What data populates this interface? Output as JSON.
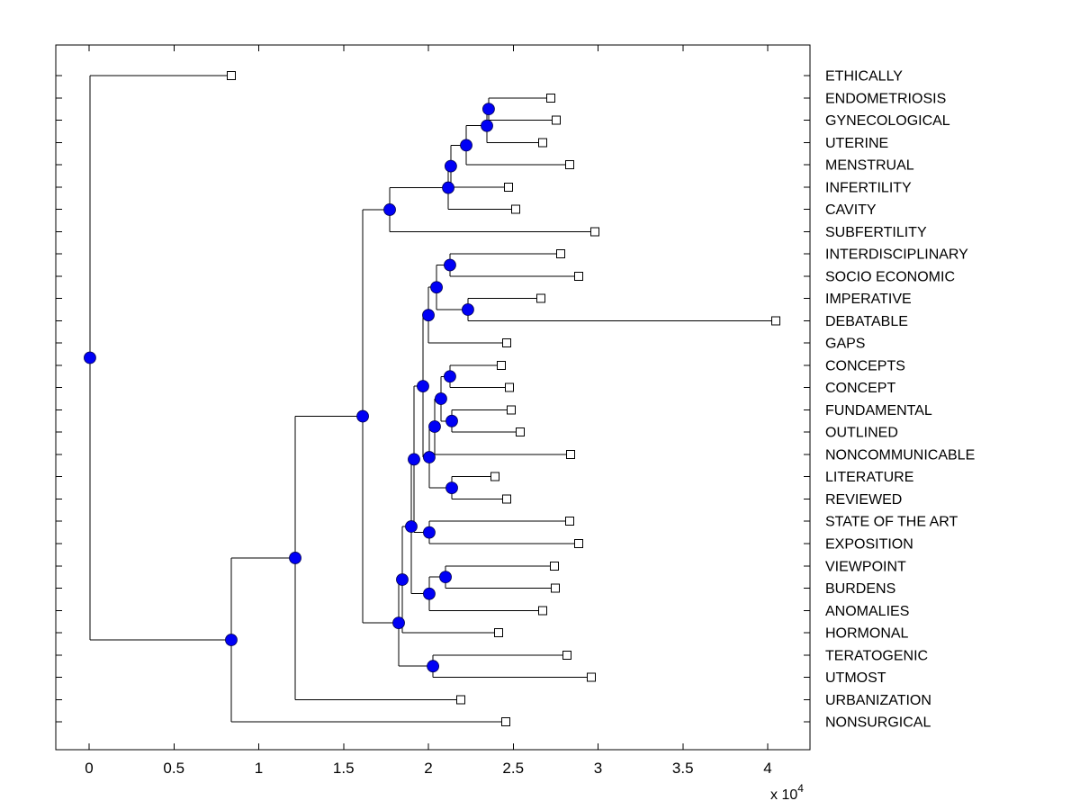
{
  "figure": {
    "background": "#ffffff",
    "title": ""
  },
  "chart_data": {
    "type": "dendrogram",
    "orientation": "horizontal, root at left, leaves at right",
    "title": "",
    "xlabel": "",
    "ylabel": "",
    "grid": false,
    "x_axis": {
      "tick_labels": [
        "0",
        "0.5",
        "1",
        "1.5",
        "2",
        "2.5",
        "3",
        "3.5",
        "4"
      ],
      "tick_values": [
        0,
        0.5,
        1,
        1.5,
        2,
        2.5,
        3,
        3.5,
        4
      ],
      "multiplier_prefix": "x 10",
      "multiplier_exponent": "4",
      "units_note": "branch distance, values in units of 10^4"
    },
    "leaf_order": [
      "ETHICALLY",
      "ENDOMETRIOSIS",
      "GYNECOLOGICAL",
      "UTERINE",
      "MENSTRUAL",
      "INFERTILITY",
      "CAVITY",
      "SUBFERTILITY",
      "INTERDISCIPLINARY",
      "SOCIO ECONOMIC",
      "IMPERATIVE",
      "DEBATABLE",
      "GAPS",
      "CONCEPTS",
      "CONCEPT",
      "FUNDAMENTAL",
      "OUTLINED",
      "NONCOMMUNICABLE",
      "LITERATURE",
      "REVIEWED",
      "STATE OF THE ART",
      "EXPOSITION",
      "VIEWPOINT",
      "BURDENS",
      "ANOMALIES",
      "HORMONAL",
      "TERATOGENIC",
      "UTMOST",
      "URBANIZATION",
      "NONSURGICAL"
    ],
    "styles": {
      "line_color": "#000000",
      "node_marker_fill": "#0000f5",
      "node_marker_edge": "#000050",
      "leaf_marker_fill": "#ffffff",
      "leaf_marker_edge": "#000000",
      "text_color": "#000000"
    },
    "tree": {
      "d": 0.005,
      "c": [
        {
          "leaf": "ETHICALLY",
          "d": 0.838
        },
        {
          "d": 0.838,
          "c": [
            {
              "d": 1.215,
              "c": [
                {
                  "d": 1.613,
                  "c": [
                    {
                      "d": 1.772,
                      "c": [
                        {
                          "d": 2.117,
                          "c": [
                            {
                              "d": 2.132,
                              "c": [
                                {
                                  "d": 2.223,
                                  "c": [
                                    {
                                      "d": 2.345,
                                      "c": [
                                        {
                                          "d": 2.355,
                                          "c": [
                                            {
                                              "leaf": "ENDOMETRIOSIS",
                                              "d": 2.722
                                            },
                                            {
                                              "leaf": "GYNECOLOGICAL",
                                              "d": 2.753
                                            }
                                          ]
                                        },
                                        {
                                          "leaf": "UTERINE",
                                          "d": 2.674
                                        }
                                      ]
                                    },
                                    {
                                      "leaf": "MENSTRUAL",
                                      "d": 2.833
                                    }
                                  ]
                                },
                                {
                                  "leaf": "INFERTILITY",
                                  "d": 2.472
                                }
                              ]
                            },
                            {
                              "leaf": "CAVITY",
                              "d": 2.514
                            }
                          ]
                        },
                        {
                          "leaf": "SUBFERTILITY",
                          "d": 2.981
                        }
                      ]
                    },
                    {
                      "d": 1.825,
                      "c": [
                        {
                          "d": 1.846,
                          "c": [
                            {
                              "d": 1.899,
                              "c": [
                                {
                                  "d": 1.915,
                                  "c": [
                                    {
                                      "d": 1.968,
                                      "c": [
                                        {
                                          "d": 2.0,
                                          "c": [
                                            {
                                              "d": 2.048,
                                              "c": [
                                                {
                                                  "d": 2.127,
                                                  "c": [
                                                    {
                                                      "leaf": "INTERDISCIPLINARY",
                                                      "d": 2.78
                                                    },
                                                    {
                                                      "leaf": "SOCIO ECONOMIC",
                                                      "d": 2.886
                                                    }
                                                  ]
                                                },
                                                {
                                                  "d": 2.233,
                                                  "c": [
                                                    {
                                                      "leaf": "IMPERATIVE",
                                                      "d": 2.663
                                                    },
                                                    {
                                                      "leaf": "DEBATABLE",
                                                      "d": 4.048
                                                    }
                                                  ]
                                                }
                                              ]
                                            },
                                            {
                                              "leaf": "GAPS",
                                              "d": 2.462
                                            }
                                          ]
                                        },
                                        {
                                          "d": 2.005,
                                          "c": [
                                            {
                                              "d": 2.037,
                                              "c": [
                                                {
                                                  "d": 2.074,
                                                  "c": [
                                                    {
                                                      "d": 2.127,
                                                      "c": [
                                                        {
                                                          "leaf": "CONCEPTS",
                                                          "d": 2.43
                                                        },
                                                        {
                                                          "leaf": "CONCEPT",
                                                          "d": 2.477
                                                        }
                                                      ]
                                                    },
                                                    {
                                                      "d": 2.138,
                                                      "c": [
                                                        {
                                                          "leaf": "FUNDAMENTAL",
                                                          "d": 2.488
                                                        },
                                                        {
                                                          "leaf": "OUTLINED",
                                                          "d": 2.541
                                                        }
                                                      ]
                                                    }
                                                  ]
                                                },
                                                {
                                                  "leaf": "NONCOMMUNICABLE",
                                                  "d": 2.838
                                                }
                                              ]
                                            },
                                            {
                                              "d": 2.138,
                                              "c": [
                                                {
                                                  "leaf": "LITERATURE",
                                                  "d": 2.393
                                                },
                                                {
                                                  "leaf": "REVIEWED",
                                                  "d": 2.462
                                                }
                                              ]
                                            }
                                          ]
                                        }
                                      ]
                                    },
                                    {
                                      "d": 2.005,
                                      "c": [
                                        {
                                          "leaf": "STATE OF THE ART",
                                          "d": 2.833
                                        },
                                        {
                                          "leaf": "EXPOSITION",
                                          "d": 2.886
                                        }
                                      ]
                                    }
                                  ]
                                },
                                {
                                  "d": 2.005,
                                  "c": [
                                    {
                                      "d": 2.101,
                                      "c": [
                                        {
                                          "leaf": "VIEWPOINT",
                                          "d": 2.743
                                        },
                                        {
                                          "leaf": "BURDENS",
                                          "d": 2.748
                                        }
                                      ]
                                    },
                                    {
                                      "leaf": "ANOMALIES",
                                      "d": 2.674
                                    }
                                  ]
                                }
                              ]
                            },
                            {
                              "leaf": "HORMONAL",
                              "d": 2.414
                            }
                          ]
                        },
                        {
                          "d": 2.027,
                          "c": [
                            {
                              "leaf": "TERATOGENIC",
                              "d": 2.817
                            },
                            {
                              "leaf": "UTMOST",
                              "d": 2.96
                            }
                          ]
                        }
                      ]
                    }
                  ]
                },
                {
                  "leaf": "URBANIZATION",
                  "d": 2.191
                }
              ]
            },
            {
              "leaf": "NONSURGICAL",
              "d": 2.456
            }
          ]
        }
      ]
    }
  }
}
